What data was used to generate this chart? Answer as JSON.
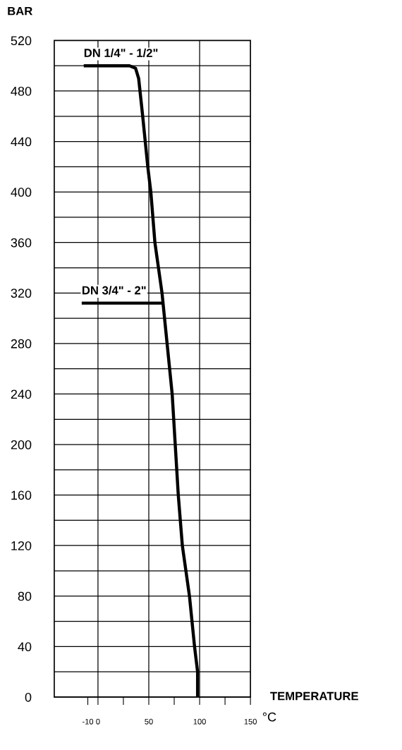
{
  "chart_data": {
    "type": "line",
    "ylabel": "BAR",
    "xlabel": "TEMPERATURE",
    "annotations": [
      "°C"
    ],
    "series": [
      {
        "name": "DN 1/4\" - 1/2\"",
        "color": "#000000",
        "x": [
          -14,
          31,
          37,
          40,
          44,
          49,
          52,
          56,
          63,
          73,
          79,
          83,
          90,
          95,
          98,
          98
        ],
        "values": [
          500,
          500,
          498,
          490,
          460,
          420,
          400,
          360,
          320,
          240,
          160,
          120,
          80,
          40,
          20,
          0
        ]
      },
      {
        "name": "DN 3/4\" - 2\"",
        "color": "#000000",
        "x": [
          -16,
          63
        ],
        "values": [
          312,
          312
        ]
      }
    ],
    "xlim": [
      -43,
      150
    ],
    "ylim": [
      0,
      520
    ],
    "xticks": [
      -10,
      0,
      {
        "value": 25,
        "label": null
      },
      50,
      {
        "value": 75,
        "label": null
      },
      100,
      {
        "value": 125,
        "label": null
      },
      150
    ],
    "yticks": [
      0,
      {
        "value": 20,
        "label": null
      },
      40,
      {
        "value": 60,
        "label": null
      },
      80,
      {
        "value": 100,
        "label": null
      },
      120,
      {
        "value": 140,
        "label": null
      },
      160,
      {
        "value": 180,
        "label": null
      },
      200,
      {
        "value": 220,
        "label": null
      },
      240,
      {
        "value": 260,
        "label": null
      },
      280,
      {
        "value": 300,
        "label": null
      },
      320,
      {
        "value": 340,
        "label": null
      },
      360,
      {
        "value": 380,
        "label": null
      },
      400,
      {
        "value": 420,
        "label": null
      },
      440,
      {
        "value": 460,
        "label": null
      },
      480,
      {
        "value": 500,
        "label": null
      },
      520
    ],
    "grid": "y",
    "ref_lines": [
      {
        "axis": "x",
        "value": 0,
        "color": "#000000"
      },
      {
        "axis": "x",
        "value": 50,
        "color": "#000000"
      },
      {
        "axis": "x",
        "value": 100,
        "color": "#000000"
      }
    ],
    "marker": "none",
    "line_style": "solid",
    "legend": false
  }
}
